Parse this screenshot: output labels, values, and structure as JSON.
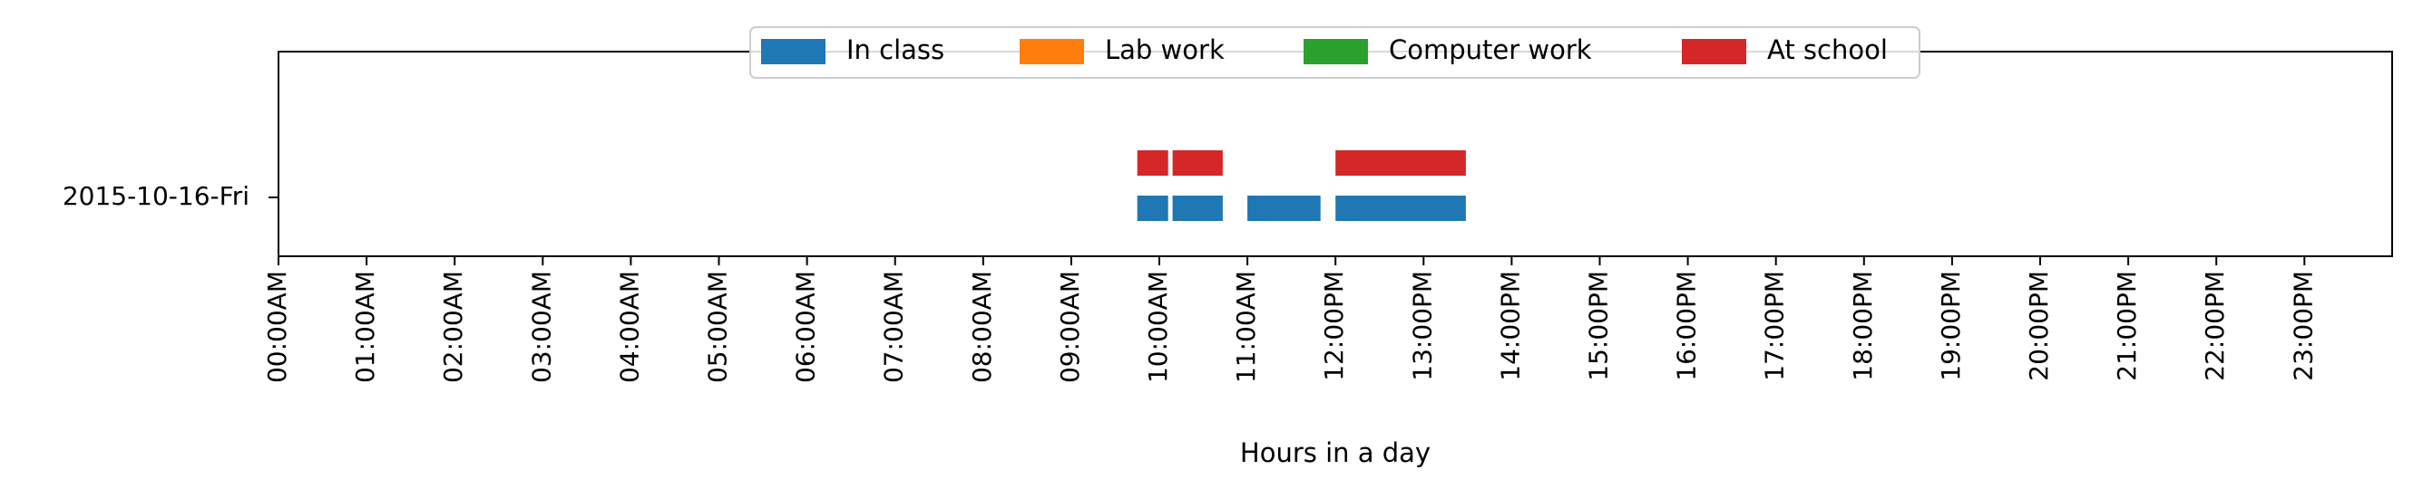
{
  "chart_data": {
    "type": "bar",
    "subtype": "horizontal-timeline",
    "title": "",
    "xlabel": "Hours in a day",
    "ylabel": "",
    "xlim": [
      0,
      24
    ],
    "x_ticks": [
      {
        "value": 0,
        "label": "00:00AM"
      },
      {
        "value": 1,
        "label": "01:00AM"
      },
      {
        "value": 2,
        "label": "02:00AM"
      },
      {
        "value": 3,
        "label": "03:00AM"
      },
      {
        "value": 4,
        "label": "04:00AM"
      },
      {
        "value": 5,
        "label": "05:00AM"
      },
      {
        "value": 6,
        "label": "06:00AM"
      },
      {
        "value": 7,
        "label": "07:00AM"
      },
      {
        "value": 8,
        "label": "08:00AM"
      },
      {
        "value": 9,
        "label": "09:00AM"
      },
      {
        "value": 10,
        "label": "10:00AM"
      },
      {
        "value": 11,
        "label": "11:00AM"
      },
      {
        "value": 12,
        "label": "12:00PM"
      },
      {
        "value": 13,
        "label": "13:00PM"
      },
      {
        "value": 14,
        "label": "14:00PM"
      },
      {
        "value": 15,
        "label": "15:00PM"
      },
      {
        "value": 16,
        "label": "16:00PM"
      },
      {
        "value": 17,
        "label": "17:00PM"
      },
      {
        "value": 18,
        "label": "18:00PM"
      },
      {
        "value": 19,
        "label": "19:00PM"
      },
      {
        "value": 20,
        "label": "20:00PM"
      },
      {
        "value": 21,
        "label": "21:00PM"
      },
      {
        "value": 22,
        "label": "22:00PM"
      },
      {
        "value": 23,
        "label": "23:00PM"
      }
    ],
    "categories": [
      "2015-10-16-Fri"
    ],
    "legend_position": "top-center",
    "grid": false,
    "series": [
      {
        "name": "In class",
        "color": "#1f77b4",
        "row": "lower",
        "intervals": [
          [
            9.75,
            10.1
          ],
          [
            10.15,
            10.72
          ],
          [
            11.0,
            11.83
          ],
          [
            12.0,
            13.48
          ]
        ]
      },
      {
        "name": "Lab work",
        "color": "#ff7f0e",
        "row": "none",
        "intervals": []
      },
      {
        "name": "Computer work",
        "color": "#2ca02c",
        "row": "none",
        "intervals": []
      },
      {
        "name": "At school",
        "color": "#d62728",
        "row": "upper",
        "intervals": [
          [
            9.75,
            10.1
          ],
          [
            10.15,
            10.72
          ],
          [
            12.0,
            13.48
          ]
        ]
      }
    ]
  }
}
